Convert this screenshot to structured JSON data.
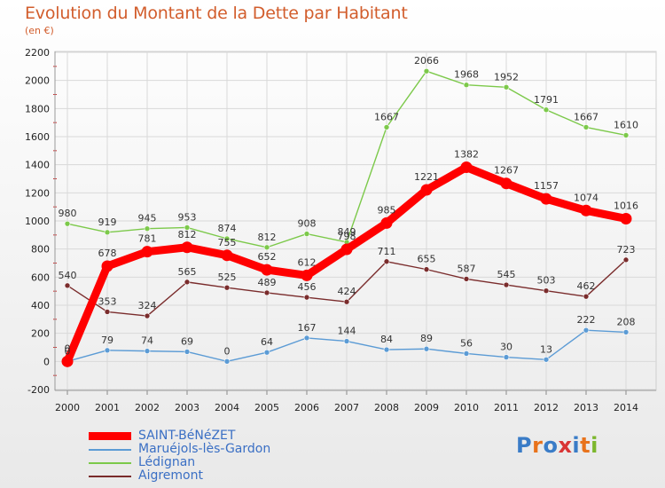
{
  "header": {
    "title": "Evolution du Montant de la Dette par Habitant",
    "subtitle": "(en €)"
  },
  "logo": {
    "text": "Proxiti",
    "letter_colors": [
      "#3a7cc7",
      "#e8731c",
      "#3a7cc7",
      "#d93434",
      "#3a7cc7",
      "#e8731c",
      "#7cb72d"
    ]
  },
  "chart_data": {
    "type": "line",
    "title": "Evolution du Montant de la Dette par Habitant",
    "subtitle": "(en €)",
    "xlabel": "",
    "ylabel": "",
    "x": [
      "2000",
      "2001",
      "2002",
      "2003",
      "2004",
      "2005",
      "2006",
      "2007",
      "2008",
      "2009",
      "2010",
      "2011",
      "2012",
      "2013",
      "2014"
    ],
    "ylim": [
      -200,
      2200
    ],
    "yticks": [
      -200,
      0,
      200,
      400,
      600,
      800,
      1000,
      1200,
      1400,
      1600,
      1800,
      2000,
      2200
    ],
    "grid": true,
    "legend_position": "bottom-left",
    "series": [
      {
        "name": "Lédignan",
        "color": "#7cc94a",
        "values": [
          980,
          919,
          945,
          953,
          874,
          812,
          908,
          849,
          1667,
          2066,
          1968,
          1952,
          1791,
          1667,
          1610
        ]
      },
      {
        "name": "Aigremont",
        "color": "#7a2c2c",
        "values": [
          540,
          353,
          324,
          565,
          525,
          489,
          456,
          424,
          711,
          655,
          587,
          545,
          503,
          462,
          723
        ]
      },
      {
        "name": "Maruéjols-lès-Gardon",
        "color": "#5b9bd5",
        "values": [
          0,
          79,
          74,
          69,
          0,
          64,
          167,
          144,
          84,
          89,
          56,
          30,
          13,
          222,
          208
        ]
      },
      {
        "name": "SAINT-BéNéZET",
        "color": "#ff0000",
        "values": [
          0,
          678,
          781,
          812,
          755,
          652,
          612,
          798,
          985,
          1221,
          1382,
          1267,
          1157,
          1074,
          1016
        ]
      }
    ],
    "legend_order": [
      "SAINT-BéNéZET",
      "Maruéjols-lès-Gardon",
      "Lédignan",
      "Aigremont"
    ]
  }
}
